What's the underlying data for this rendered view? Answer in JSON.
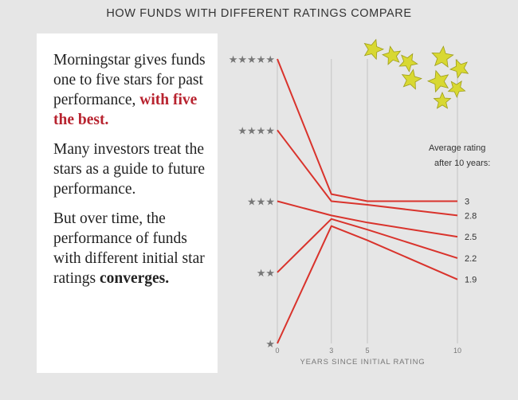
{
  "title": "HOW FUNDS WITH DIFFERENT RATINGS COMPARE",
  "text_panel": {
    "p1_plain": "Morningstar gives funds one to five stars for past performance,",
    "p1_emphasis": "with five the best.",
    "p2": "Many investors treat the stars as a guide to future performance.",
    "p3_plain": "But over time, the performance of funds with different initial star ratings",
    "p3_emphasis": "converges."
  },
  "decoration": {
    "name": "gold-stars-cluster",
    "color": "#d8d832"
  },
  "colors": {
    "line": "#d9332c",
    "grid": "#c4c4c4",
    "axis_text": "#777777",
    "star": "#777777"
  },
  "chart_data": {
    "type": "line",
    "title": "HOW FUNDS WITH DIFFERENT RATINGS COMPARE",
    "xlabel": "YEARS SINCE INITIAL RATING",
    "ylabel": "",
    "x_ticks": [
      0,
      3,
      5,
      10
    ],
    "xlim": [
      0,
      10
    ],
    "ylim": [
      1,
      5
    ],
    "y_tick_labels": [
      "★",
      "★★",
      "★★★",
      "★★★★",
      "★★★★★"
    ],
    "y_tick_values": [
      1,
      2,
      3,
      4,
      5
    ],
    "annotation": "Average rating after 10 years:",
    "series": [
      {
        "x": [
          0,
          3,
          5,
          10
        ],
        "values": [
          5,
          3.1,
          3.0,
          3.0
        ],
        "end_label": "3"
      },
      {
        "x": [
          0,
          3,
          5,
          10
        ],
        "values": [
          4,
          3.0,
          2.95,
          2.8
        ],
        "end_label": "2.8"
      },
      {
        "x": [
          0,
          3,
          5,
          10
        ],
        "values": [
          3,
          2.8,
          2.7,
          2.5
        ],
        "end_label": "2.5"
      },
      {
        "x": [
          0,
          3,
          5,
          10
        ],
        "values": [
          2,
          2.75,
          2.6,
          2.2
        ],
        "end_label": "2.2"
      },
      {
        "x": [
          0,
          3,
          5,
          10
        ],
        "values": [
          1,
          2.65,
          2.45,
          1.9
        ],
        "end_label": "1.9"
      }
    ]
  }
}
